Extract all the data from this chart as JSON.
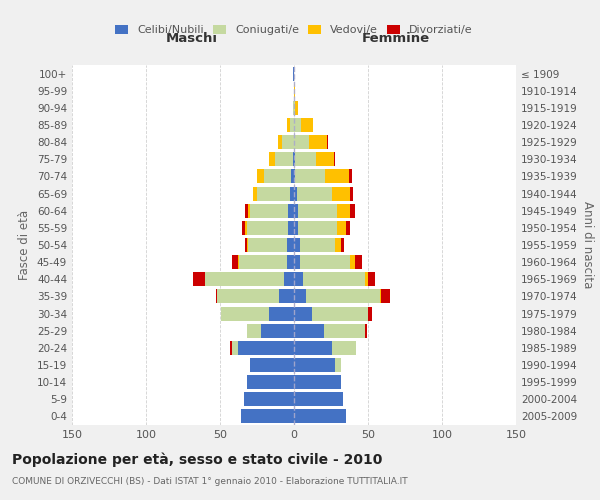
{
  "age_groups": [
    "0-4",
    "5-9",
    "10-14",
    "15-19",
    "20-24",
    "25-29",
    "30-34",
    "35-39",
    "40-44",
    "45-49",
    "50-54",
    "55-59",
    "60-64",
    "65-69",
    "70-74",
    "75-79",
    "80-84",
    "85-89",
    "90-94",
    "95-99",
    "100+"
  ],
  "birth_years": [
    "2005-2009",
    "2000-2004",
    "1995-1999",
    "1990-1994",
    "1985-1989",
    "1980-1984",
    "1975-1979",
    "1970-1974",
    "1965-1969",
    "1960-1964",
    "1955-1959",
    "1950-1954",
    "1945-1949",
    "1940-1944",
    "1935-1939",
    "1930-1934",
    "1925-1929",
    "1920-1924",
    "1915-1919",
    "1910-1914",
    "≤ 1909"
  ],
  "male": {
    "celibi": [
      36,
      34,
      32,
      30,
      38,
      22,
      17,
      10,
      7,
      5,
      5,
      4,
      4,
      3,
      2,
      1,
      0,
      0,
      0,
      0,
      1
    ],
    "coniugati": [
      0,
      0,
      0,
      0,
      4,
      10,
      32,
      42,
      53,
      32,
      26,
      28,
      26,
      22,
      18,
      12,
      8,
      3,
      1,
      0,
      0
    ],
    "vedovi": [
      0,
      0,
      0,
      0,
      0,
      0,
      0,
      0,
      0,
      1,
      1,
      1,
      1,
      3,
      5,
      4,
      3,
      2,
      0,
      0,
      0
    ],
    "divorziati": [
      0,
      0,
      0,
      0,
      1,
      0,
      0,
      1,
      8,
      4,
      1,
      2,
      2,
      0,
      0,
      0,
      0,
      0,
      0,
      0,
      0
    ]
  },
  "female": {
    "nubili": [
      35,
      33,
      32,
      28,
      26,
      20,
      12,
      8,
      6,
      4,
      4,
      3,
      3,
      2,
      1,
      1,
      0,
      0,
      0,
      0,
      0
    ],
    "coniugate": [
      0,
      0,
      0,
      4,
      16,
      28,
      38,
      50,
      42,
      34,
      24,
      26,
      26,
      24,
      20,
      14,
      10,
      5,
      1,
      0,
      0
    ],
    "vedove": [
      0,
      0,
      0,
      0,
      0,
      0,
      0,
      1,
      2,
      3,
      4,
      6,
      9,
      12,
      16,
      12,
      12,
      8,
      2,
      1,
      0
    ],
    "divorziate": [
      0,
      0,
      0,
      0,
      0,
      1,
      3,
      6,
      5,
      5,
      2,
      3,
      3,
      2,
      2,
      1,
      1,
      0,
      0,
      0,
      0
    ]
  },
  "colors": {
    "celibi": "#4472c4",
    "coniugati": "#c5d9a0",
    "vedovi": "#ffc000",
    "divorziati": "#cc0000"
  },
  "xlim": 150,
  "title": "Popolazione per età, sesso e stato civile - 2010",
  "subtitle": "COMUNE DI ORZIVECCHI (BS) - Dati ISTAT 1° gennaio 2010 - Elaborazione TUTTITALIA.IT",
  "ylabel_left": "Fasce di età",
  "ylabel_right": "Anni di nascita",
  "xlabel_left": "Maschi",
  "xlabel_right": "Femmine",
  "bg_color": "#f0f0f0",
  "plot_bg": "#ffffff",
  "grid_color": "#cccccc",
  "bar_height": 0.82
}
